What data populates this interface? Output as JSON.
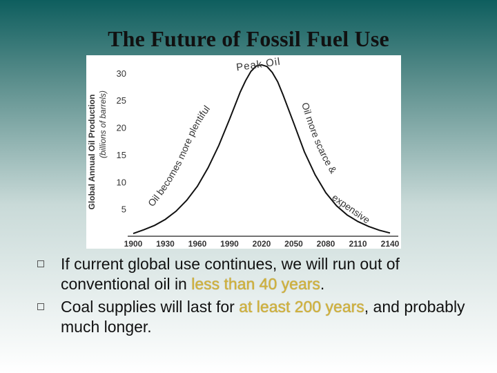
{
  "slide": {
    "title": "The Future of Fossil Fuel Use"
  },
  "chart_data": {
    "type": "line",
    "ylabel": "Global Annual Oil Production",
    "ylabel_units": "(billions of barrels)",
    "x_ticks": [
      "1900",
      "1930",
      "1960",
      "1990",
      "2020",
      "2050",
      "2080",
      "2110",
      "2140"
    ],
    "y_ticks": [
      "5",
      "10",
      "15",
      "20",
      "25",
      "30"
    ],
    "xlim": [
      1900,
      2140
    ],
    "ylim": [
      0,
      32
    ],
    "grid": false,
    "series": [
      {
        "x": [
          1900,
          1910,
          1920,
          1930,
          1940,
          1950,
          1960,
          1970,
          1980,
          1990,
          2000,
          2005,
          2010,
          2015,
          2020,
          2025,
          2030,
          2035,
          2040,
          2050,
          2060,
          2070,
          2080,
          2090,
          2100,
          2110,
          2120,
          2130,
          2140
        ],
        "values": [
          0.5,
          1.2,
          2.0,
          3.1,
          4.6,
          6.6,
          9.2,
          12.6,
          16.7,
          21.5,
          26.5,
          28.6,
          30.3,
          31.3,
          31.5,
          31.2,
          30.1,
          28.4,
          26.0,
          20.8,
          15.5,
          11.3,
          8.0,
          5.6,
          3.9,
          2.7,
          1.8,
          1.1,
          0.6
        ]
      }
    ],
    "annotations": {
      "peak": "Peak Oil",
      "rising": "Oil becomes more plentiful",
      "falling_1": "Oil more scarce &",
      "falling_2": "expensive"
    }
  },
  "bullets": [
    {
      "before": "If current global use continues, we will run out of conventional oil in ",
      "highlight": "less than 40 years",
      "after": "."
    },
    {
      "before": "Coal supplies will last for ",
      "highlight": "at least 200 years",
      "after": ", and probably much longer."
    }
  ],
  "colors": {
    "highlight": "#d2b23a",
    "curve": "#111111"
  }
}
